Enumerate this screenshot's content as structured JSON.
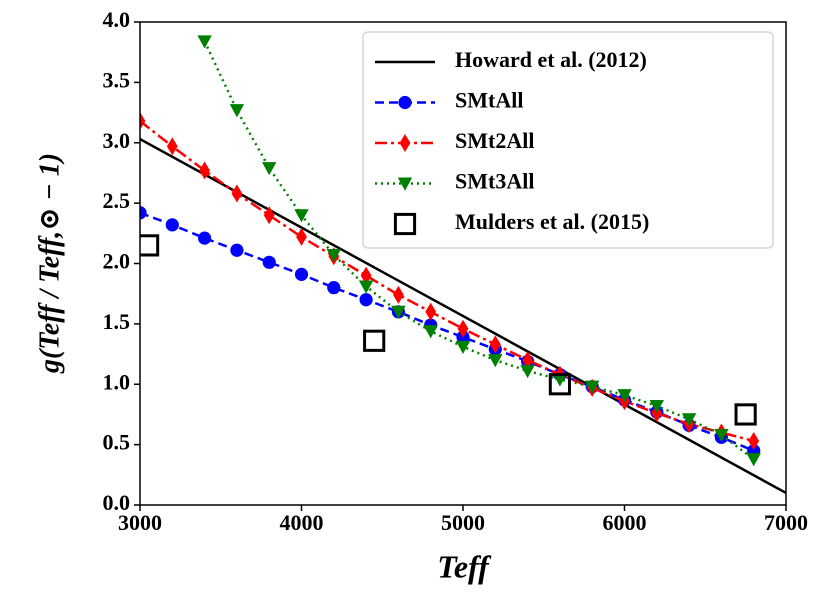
{
  "chart_data": {
    "type": "line",
    "xlabel": "Teff",
    "ylabel": "g(Teff / Teff,⊙ − 1)",
    "xlim": [
      3000,
      7000
    ],
    "xticks": [
      3000,
      4000,
      5000,
      6000,
      7000
    ],
    "ylim": [
      0,
      4
    ],
    "yticks": [
      {
        "value": 0,
        "label": "0.0"
      },
      0.5,
      {
        "value": 1,
        "label": "1.0"
      },
      1.5,
      {
        "value": 2,
        "label": "2.0"
      },
      2.5,
      {
        "value": 3,
        "label": "3.0"
      },
      3.5,
      {
        "value": 4,
        "label": "4.0"
      }
    ],
    "legend": "upper right",
    "series": [
      {
        "name": "Howard et al. (2012)",
        "color": "#000000",
        "linestyle": "solid",
        "marker": "none",
        "x": [
          3000,
          7000
        ],
        "values": [
          3.03,
          0.1
        ]
      },
      {
        "name": "SMtAll",
        "color": "#0000ff",
        "linestyle": "dashed",
        "marker": "circle",
        "x": [
          3000,
          3200,
          3400,
          3600,
          3800,
          4000,
          4200,
          4400,
          4600,
          4800,
          5000,
          5200,
          5400,
          5600,
          5800,
          6000,
          6200,
          6400,
          6600,
          6800
        ],
        "values": [
          2.42,
          2.32,
          2.21,
          2.11,
          2.01,
          1.91,
          1.8,
          1.7,
          1.6,
          1.49,
          1.39,
          1.29,
          1.19,
          1.08,
          0.98,
          0.87,
          0.77,
          0.66,
          0.56,
          0.45
        ]
      },
      {
        "name": "SMt2All",
        "color": "#ff0000",
        "linestyle": "dashdot",
        "marker": "diamond",
        "x": [
          3000,
          3200,
          3400,
          3600,
          3800,
          4000,
          4200,
          4400,
          4600,
          4800,
          5000,
          5200,
          5400,
          5600,
          5800,
          6000,
          6200,
          6400,
          6600,
          6800
        ],
        "values": [
          3.18,
          2.97,
          2.77,
          2.58,
          2.4,
          2.22,
          2.06,
          1.9,
          1.74,
          1.6,
          1.46,
          1.33,
          1.2,
          1.08,
          0.97,
          0.86,
          0.76,
          0.67,
          0.6,
          0.53
        ]
      },
      {
        "name": "SMt3All",
        "color": "#008000",
        "linestyle": "dotted",
        "marker": "triangle-down",
        "x": [
          3400,
          3600,
          3800,
          4000,
          4200,
          4400,
          4600,
          4800,
          5000,
          5200,
          5400,
          5600,
          5800,
          6000,
          6200,
          6400,
          6600,
          6800
        ],
        "values": [
          3.84,
          3.27,
          2.79,
          2.4,
          2.07,
          1.81,
          1.6,
          1.44,
          1.31,
          1.2,
          1.11,
          1.04,
          0.98,
          0.91,
          0.82,
          0.71,
          0.58,
          0.38
        ]
      },
      {
        "name": "Mulders et al. (2015)",
        "color": "#000000",
        "linestyle": "none",
        "marker": "square",
        "x": [
          3050,
          4450,
          5600,
          6750
        ],
        "values": [
          2.15,
          1.36,
          1.0,
          0.75
        ]
      }
    ]
  }
}
